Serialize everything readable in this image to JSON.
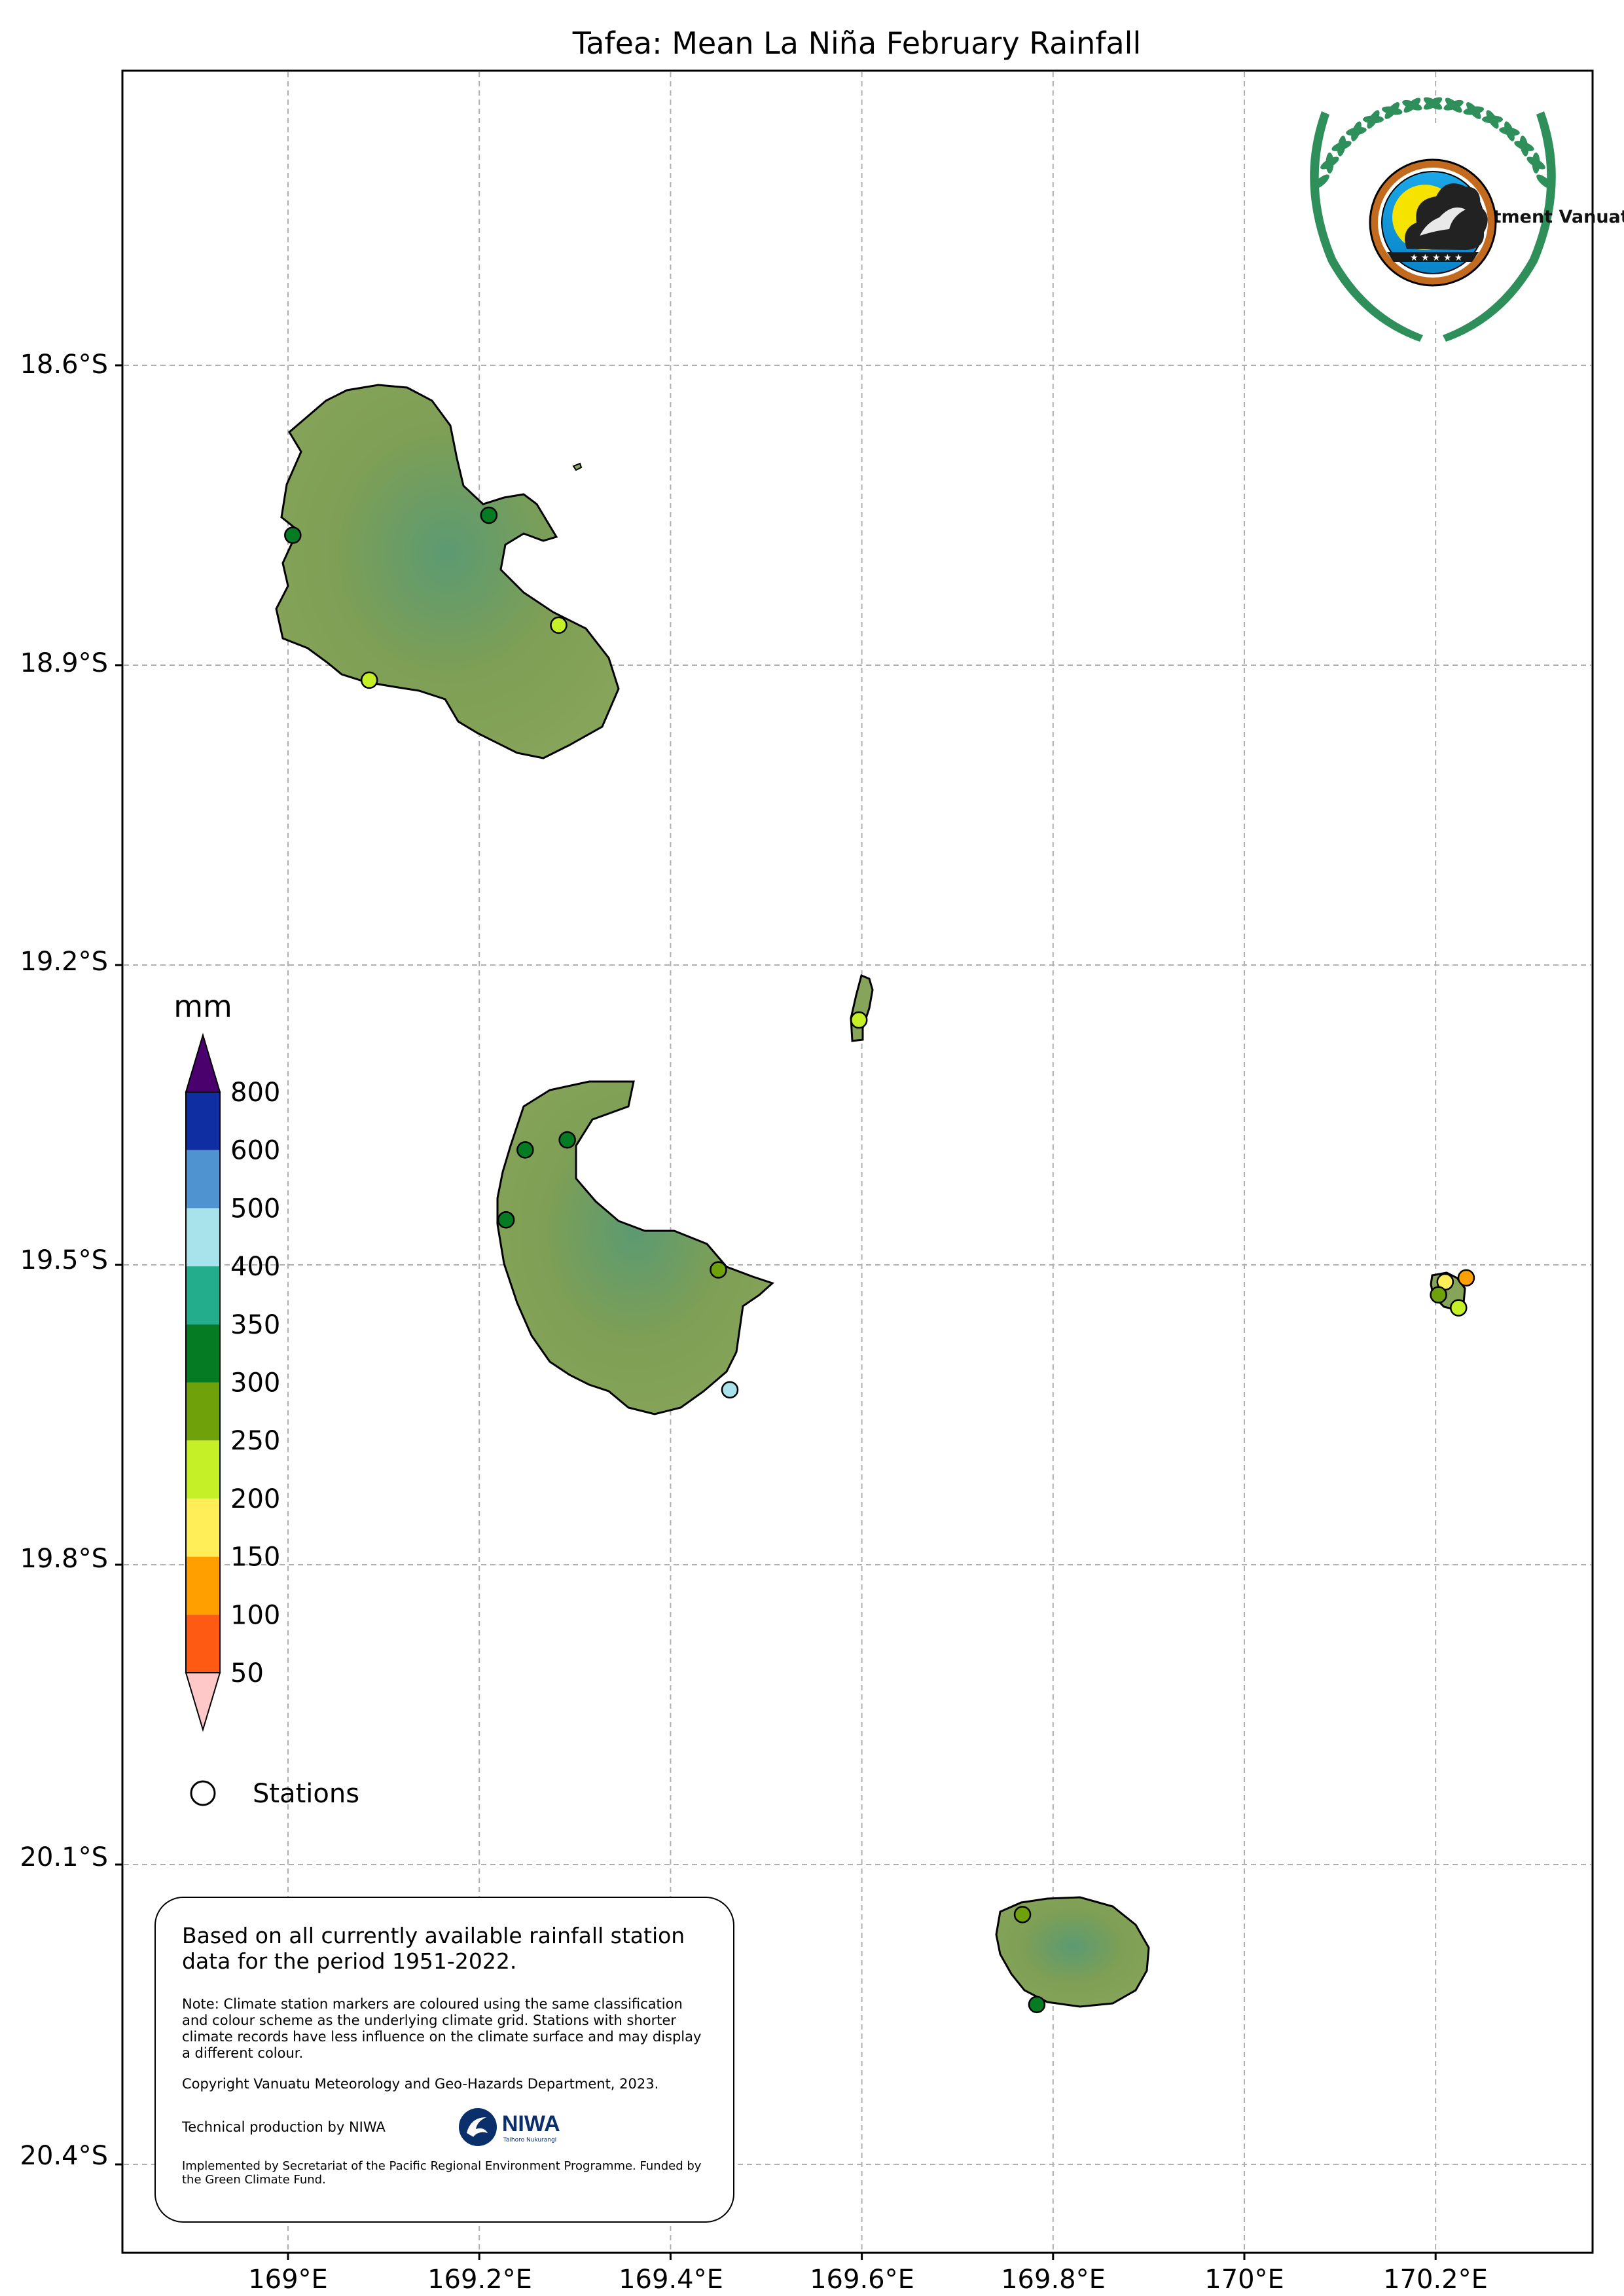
{
  "title": "Tafea: Mean La Niña February Rainfall",
  "axes": {
    "x_ticks": [
      "169°E",
      "169.2°E",
      "169.4°E",
      "169.6°E",
      "169.8°E",
      "170°E",
      "170.2°E"
    ],
    "y_ticks": [
      "18.6°S",
      "18.9°S",
      "19.2°S",
      "19.5°S",
      "19.8°S",
      "20.1°S",
      "20.4°S"
    ]
  },
  "legend": {
    "unit": "mm",
    "colorbar": [
      {
        "label": "50",
        "color": "#ff5a14"
      },
      {
        "label": "100",
        "color": "#ff9f00"
      },
      {
        "label": "150",
        "color": "#ffee58"
      },
      {
        "label": "200",
        "color": "#c5f028"
      },
      {
        "label": "250",
        "color": "#6ea10a"
      },
      {
        "label": "300",
        "color": "#057c24"
      },
      {
        "label": "350",
        "color": "#24ad8c"
      },
      {
        "label": "400",
        "color": "#a8e2ea"
      },
      {
        "label": "500",
        "color": "#4f93d1"
      },
      {
        "label": "600",
        "color": "#0e2ea1"
      },
      {
        "label": "800",
        "color": "#4a006d"
      }
    ],
    "under_color": "#ffc8c8",
    "over_color": "#4a006d",
    "stations_label": "Stations"
  },
  "stations": [
    {
      "lon": 169.005,
      "lat": -18.77,
      "color": "#057c24"
    },
    {
      "lon": 169.21,
      "lat": -18.75,
      "color": "#057c24"
    },
    {
      "lon": 169.283,
      "lat": -18.86,
      "color": "#c5f028"
    },
    {
      "lon": 169.085,
      "lat": -18.915,
      "color": "#c5f028"
    },
    {
      "lon": 169.597,
      "lat": -19.255,
      "color": "#c5f028"
    },
    {
      "lon": 169.292,
      "lat": -19.375,
      "color": "#057c24"
    },
    {
      "lon": 169.248,
      "lat": -19.385,
      "color": "#057c24"
    },
    {
      "lon": 169.228,
      "lat": -19.455,
      "color": "#057c24"
    },
    {
      "lon": 169.45,
      "lat": -19.505,
      "color": "#6ea10a"
    },
    {
      "lon": 169.462,
      "lat": -19.625,
      "color": "#a8e2ea"
    },
    {
      "lon": 170.21,
      "lat": -19.517,
      "color": "#ffee58"
    },
    {
      "lon": 170.232,
      "lat": -19.513,
      "color": "#ff9f00"
    },
    {
      "lon": 170.203,
      "lat": -19.53,
      "color": "#6ea10a"
    },
    {
      "lon": 170.224,
      "lat": -19.543,
      "color": "#c5f028"
    },
    {
      "lon": 169.768,
      "lat": -20.15,
      "color": "#6ea10a"
    },
    {
      "lon": 169.783,
      "lat": -20.24,
      "color": "#057c24"
    }
  ],
  "logo": {
    "name": "vanuatu-meteorology-logo",
    "text": "Department Vanuatu Meteorology and Geo-Hazards"
  },
  "note": {
    "main": "Based on all currently available rainfall station data for the period 1951-2022.",
    "detail": "Note: Climate station markers are coloured using the same classification and colour scheme as the underlying climate grid. Stations with shorter climate records have less influence on the climate surface and may display a different colour.",
    "copyright": "Copyright Vanuatu Meteorology and Geo-Hazards Department, 2023.",
    "technical": "Technical production by NIWA",
    "niwa_logo_text": "NIWA",
    "niwa_sub_text": "Taihoro Nukurangi",
    "implemented": "Implemented by Secretariat of the Pacific Regional Environment Programme. Funded by the Green Climate Fund."
  }
}
